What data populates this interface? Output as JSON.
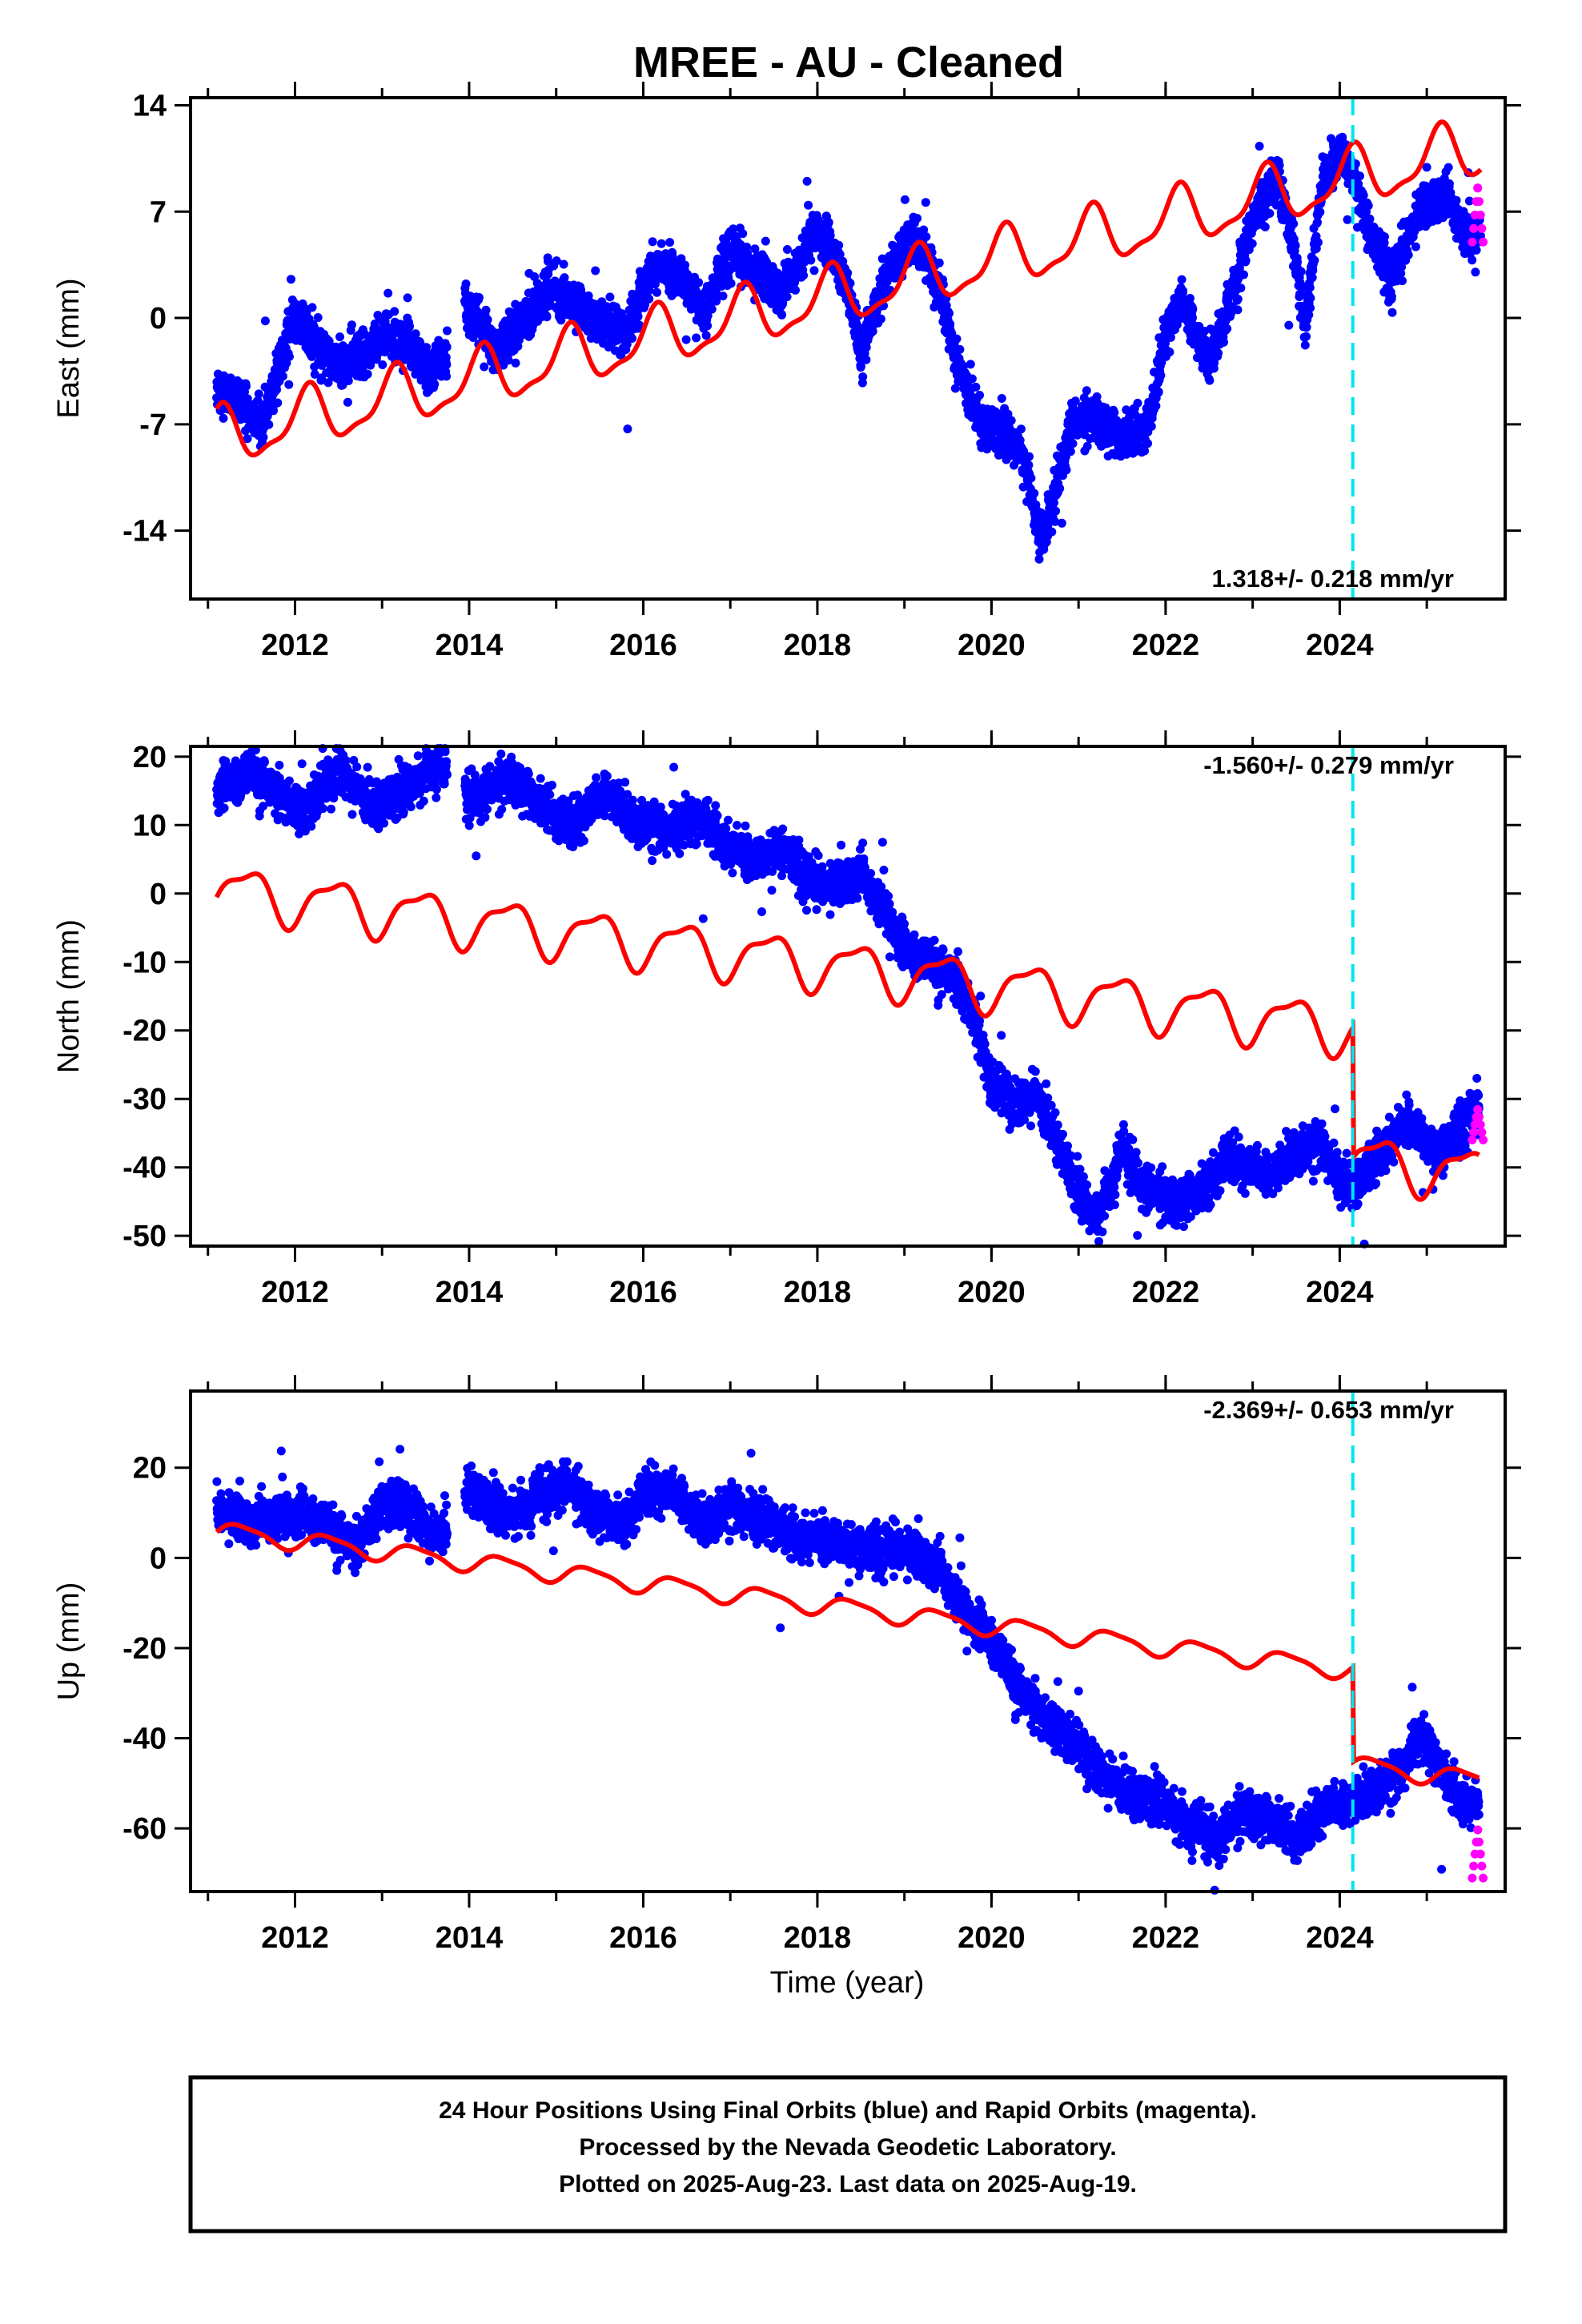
{
  "figure": {
    "title": "MREE  - AU - Cleaned",
    "xlabel": "Time (year)",
    "caption_lines": [
      "24 Hour Positions Using Final Orbits (blue) and Rapid Orbits (magenta).",
      "Processed by the Nevada Geodetic Laboratory.",
      "Plotted on 2025-Aug-23. Last data on 2025-Aug-19."
    ]
  },
  "colors": {
    "final_orbits": "#0000ff",
    "rapid_orbits": "#ff00ff",
    "model": "#ff0000",
    "equipment_change": "#00e5ee"
  },
  "chart_data": [
    {
      "type": "scatter",
      "ylabel": "East (mm)",
      "rate": "1.318+/- 0.218 mm/yr",
      "xlim": [
        2010.8,
        2025.9
      ],
      "ylim": [
        -18.5,
        14.5
      ],
      "xticks": [
        "2012",
        "2014",
        "2016",
        "2018",
        "2020",
        "2022",
        "2024"
      ],
      "yticks": [
        "14",
        "7",
        "0",
        "-7",
        "-14"
      ],
      "step_epoch": 2024.15,
      "grid": false,
      "observed_profile": [
        [
          2011.1,
          -4.5
        ],
        [
          2011.4,
          -6
        ],
        [
          2011.6,
          -7
        ],
        [
          2011.8,
          -3.5
        ],
        [
          2012.0,
          0.5
        ],
        [
          2012.2,
          -1.5
        ],
        [
          2012.5,
          -3
        ],
        [
          2012.8,
          -2.5
        ],
        [
          2013.0,
          -1
        ],
        [
          2013.3,
          -1.5
        ],
        [
          2013.5,
          -3.5
        ],
        [
          2013.7,
          -3
        ],
        [
          2013.9,
          1
        ],
        [
          2014.0,
          0.5
        ],
        [
          2014.3,
          -2
        ],
        [
          2014.6,
          -0.5
        ],
        [
          2014.9,
          2
        ],
        [
          2015.2,
          1
        ],
        [
          2015.5,
          -0.5
        ],
        [
          2015.8,
          -1
        ],
        [
          2016.1,
          3.5
        ],
        [
          2016.4,
          3
        ],
        [
          2016.7,
          0.5
        ],
        [
          2017.0,
          4.5
        ],
        [
          2017.3,
          3
        ],
        [
          2017.6,
          1.5
        ],
        [
          2018.0,
          6
        ],
        [
          2018.3,
          3
        ],
        [
          2018.5,
          -2
        ],
        [
          2018.8,
          3
        ],
        [
          2019.1,
          5.5
        ],
        [
          2019.4,
          2
        ],
        [
          2019.6,
          -3
        ],
        [
          2019.9,
          -7
        ],
        [
          2020.1,
          -7.5
        ],
        [
          2020.35,
          -9
        ],
        [
          2020.6,
          -15
        ],
        [
          2020.75,
          -11
        ],
        [
          2020.9,
          -7
        ],
        [
          2021.2,
          -6.5
        ],
        [
          2021.5,
          -8
        ],
        [
          2021.8,
          -7
        ],
        [
          2022.0,
          -1
        ],
        [
          2022.2,
          1
        ],
        [
          2022.5,
          -3
        ],
        [
          2022.8,
          2
        ],
        [
          2023.0,
          6.5
        ],
        [
          2023.3,
          9
        ],
        [
          2023.5,
          4
        ],
        [
          2023.6,
          -0.5
        ],
        [
          2023.8,
          9
        ],
        [
          2024.0,
          11
        ],
        [
          2024.15,
          9.5
        ],
        [
          2024.4,
          5
        ],
        [
          2024.6,
          2.5
        ],
        [
          2024.9,
          7
        ],
        [
          2025.2,
          8
        ],
        [
          2025.5,
          5
        ],
        [
          2025.62,
          6
        ]
      ],
      "model": {
        "a": -8,
        "b": 1.318,
        "t0": 2011.1,
        "amp1": 1.8,
        "ph1": 1.3,
        "amp2": 0.6,
        "ph2": 0.5,
        "step": 0
      },
      "rapid": {
        "x_start": 2025.55,
        "x_end": 2025.62,
        "y_low": 5,
        "y_high": 9
      }
    },
    {
      "type": "scatter",
      "ylabel": "North (mm)",
      "rate": "-1.560+/- 0.279 mm/yr",
      "xlim": [
        2010.8,
        2025.9
      ],
      "ylim": [
        -51.5,
        21.5
      ],
      "xticks": [
        "2012",
        "2014",
        "2016",
        "2018",
        "2020",
        "2022",
        "2024"
      ],
      "yticks": [
        "20",
        "10",
        "0",
        "-10",
        "-20",
        "-30",
        "-40",
        "-50"
      ],
      "step_epoch": 2024.15,
      "grid": false,
      "observed_profile": [
        [
          2011.1,
          15
        ],
        [
          2011.5,
          18
        ],
        [
          2011.9,
          14
        ],
        [
          2012.1,
          12
        ],
        [
          2012.5,
          18
        ],
        [
          2012.9,
          13
        ],
        [
          2013.3,
          15
        ],
        [
          2013.6,
          19
        ],
        [
          2013.8,
          16
        ],
        [
          2014.0,
          14
        ],
        [
          2014.5,
          17
        ],
        [
          2014.8,
          13
        ],
        [
          2015.2,
          10
        ],
        [
          2015.6,
          15
        ],
        [
          2015.9,
          10
        ],
        [
          2016.3,
          9
        ],
        [
          2016.7,
          11
        ],
        [
          2017.0,
          7
        ],
        [
          2017.3,
          5
        ],
        [
          2017.6,
          7
        ],
        [
          2017.9,
          2
        ],
        [
          2018.2,
          1
        ],
        [
          2018.5,
          2.5
        ],
        [
          2018.8,
          -3
        ],
        [
          2019.0,
          -8
        ],
        [
          2019.3,
          -10
        ],
        [
          2019.6,
          -12
        ],
        [
          2019.8,
          -18
        ],
        [
          2020.0,
          -28
        ],
        [
          2020.3,
          -31
        ],
        [
          2020.5,
          -29
        ],
        [
          2020.8,
          -37
        ],
        [
          2021.0,
          -44
        ],
        [
          2021.2,
          -48
        ],
        [
          2021.5,
          -38
        ],
        [
          2021.8,
          -43
        ],
        [
          2022.1,
          -45
        ],
        [
          2022.3,
          -44
        ],
        [
          2022.5,
          -43
        ],
        [
          2022.7,
          -38
        ],
        [
          2022.9,
          -40
        ],
        [
          2023.2,
          -41
        ],
        [
          2023.5,
          -38
        ],
        [
          2023.8,
          -37
        ],
        [
          2024.0,
          -42
        ],
        [
          2024.15,
          -43
        ],
        [
          2024.5,
          -37
        ],
        [
          2024.8,
          -33
        ],
        [
          2025.1,
          -38
        ],
        [
          2025.4,
          -34
        ],
        [
          2025.6,
          -31
        ]
      ],
      "model": {
        "a": 0.5,
        "b": -1.56,
        "t0": 2011.1,
        "amp1": 3.5,
        "ph1": -0.6,
        "amp2": 1.2,
        "ph2": 0.9,
        "step": -19
      },
      "rapid": {
        "x_start": 2025.55,
        "x_end": 2025.62,
        "y_low": -36,
        "y_high": -31
      }
    },
    {
      "type": "scatter",
      "ylabel": "Up (mm)",
      "rate": "-2.369+/- 0.653 mm/yr",
      "xlim": [
        2010.8,
        2025.9
      ],
      "ylim": [
        -74,
        37
      ],
      "xticks": [
        "2012",
        "2014",
        "2016",
        "2018",
        "2020",
        "2022",
        "2024"
      ],
      "yticks": [
        "20",
        "0",
        "-20",
        "-40",
        "-60"
      ],
      "step_epoch": 2024.15,
      "grid": false,
      "observed_profile": [
        [
          2011.1,
          11
        ],
        [
          2011.5,
          7
        ],
        [
          2011.8,
          9
        ],
        [
          2012.1,
          10
        ],
        [
          2012.4,
          7
        ],
        [
          2012.7,
          3
        ],
        [
          2013.0,
          12
        ],
        [
          2013.3,
          11
        ],
        [
          2013.6,
          5
        ],
        [
          2013.8,
          8
        ],
        [
          2014.0,
          16
        ],
        [
          2014.4,
          9
        ],
        [
          2014.8,
          13
        ],
        [
          2015.1,
          17
        ],
        [
          2015.4,
          11
        ],
        [
          2015.8,
          7
        ],
        [
          2016.0,
          15
        ],
        [
          2016.4,
          14
        ],
        [
          2016.7,
          7
        ],
        [
          2017.0,
          11
        ],
        [
          2017.4,
          8
        ],
        [
          2017.8,
          5
        ],
        [
          2018.2,
          4
        ],
        [
          2018.6,
          2
        ],
        [
          2019.0,
          2
        ],
        [
          2019.4,
          -3
        ],
        [
          2019.7,
          -12
        ],
        [
          2020.0,
          -18
        ],
        [
          2020.3,
          -28
        ],
        [
          2020.6,
          -35
        ],
        [
          2020.9,
          -40
        ],
        [
          2021.2,
          -47
        ],
        [
          2021.6,
          -52
        ],
        [
          2022.0,
          -55
        ],
        [
          2022.3,
          -60
        ],
        [
          2022.6,
          -62
        ],
        [
          2022.9,
          -56
        ],
        [
          2023.2,
          -58
        ],
        [
          2023.5,
          -62
        ],
        [
          2023.8,
          -56
        ],
        [
          2024.15,
          -54
        ],
        [
          2024.4,
          -52
        ],
        [
          2024.7,
          -48
        ],
        [
          2024.9,
          -40
        ],
        [
          2025.1,
          -45
        ],
        [
          2025.4,
          -53
        ],
        [
          2025.6,
          -55
        ]
      ],
      "model": {
        "a": 6,
        "b": -2.369,
        "t0": 2011.1,
        "amp1": 2.0,
        "ph1": -0.2,
        "amp2": 0.5,
        "ph2": 0.3,
        "step": -21
      },
      "rapid": {
        "x_start": 2025.55,
        "x_end": 2025.62,
        "y_low": -71,
        "y_high": -59
      }
    }
  ]
}
